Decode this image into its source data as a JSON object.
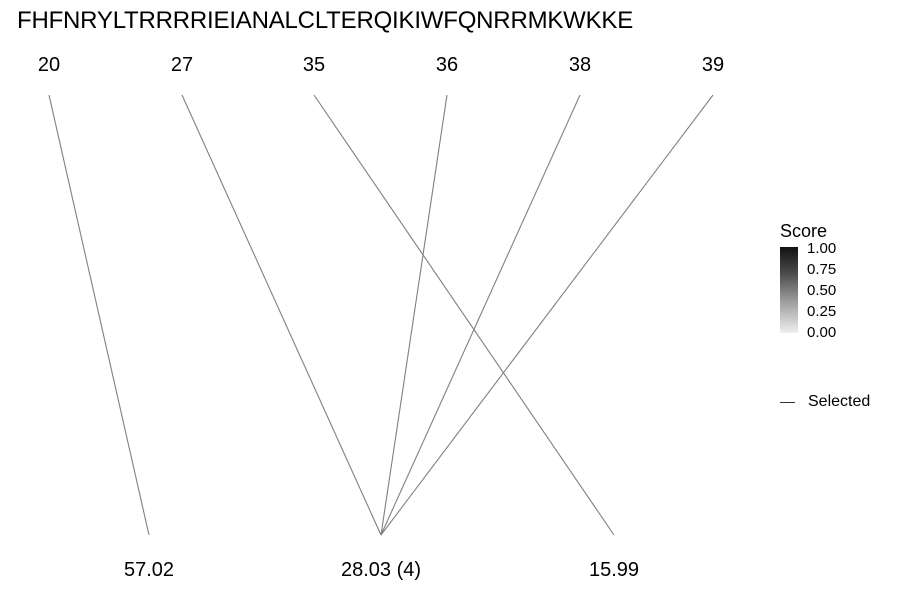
{
  "title": "FHFNRYLTRRRRIEIANALCLTERQIKIWFQNRRMKWKKE",
  "top_nodes": [
    {
      "label": "20"
    },
    {
      "label": "27"
    },
    {
      "label": "35"
    },
    {
      "label": "36"
    },
    {
      "label": "38"
    },
    {
      "label": "39"
    }
  ],
  "bottom_nodes": [
    {
      "label": "57.02"
    },
    {
      "label": "28.03 (4)"
    },
    {
      "label": "15.99"
    }
  ],
  "links": [
    {
      "from": 0,
      "to": 0
    },
    {
      "from": 1,
      "to": 1
    },
    {
      "from": 3,
      "to": 1
    },
    {
      "from": 4,
      "to": 1
    },
    {
      "from": 5,
      "to": 1
    },
    {
      "from": 2,
      "to": 2
    }
  ],
  "legend": {
    "title": "Score",
    "ticks": [
      "1.00",
      "0.75",
      "0.50",
      "0.25",
      "0.00"
    ],
    "selected_label": "Selected",
    "colors": {
      "high": "#111111",
      "low": "#efefef",
      "line": "#808080"
    }
  }
}
